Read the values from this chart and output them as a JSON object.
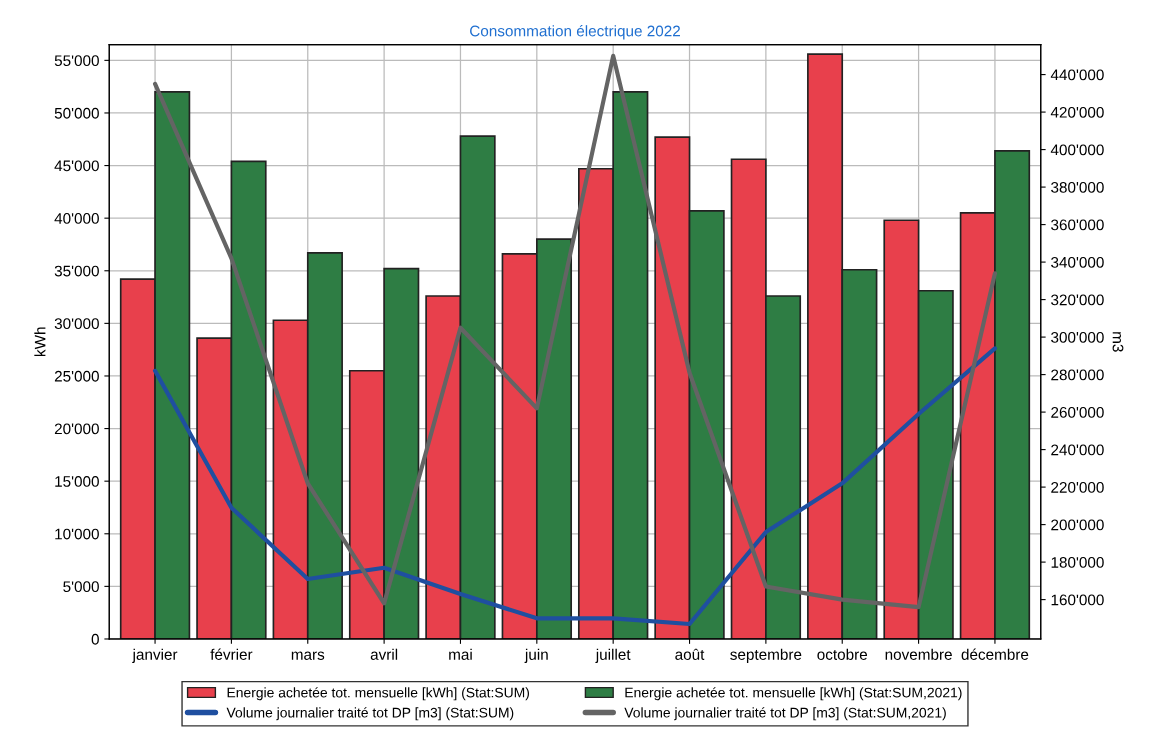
{
  "chart_data": {
    "type": "bar",
    "title": "Consommation électrique 2022",
    "ylabel": "kWh",
    "y2label": "m3",
    "categories": [
      "janvier",
      "février",
      "mars",
      "avril",
      "mai",
      "juin",
      "juillet",
      "août",
      "septembre",
      "octobre",
      "novembre",
      "décembre"
    ],
    "series": [
      {
        "name": "Energie achetée tot. mensuelle [kWh] (Stat:SUM)",
        "color": "#e8404c",
        "values": [
          34200,
          28600,
          30300,
          25500,
          32600,
          36600,
          44700,
          47700,
          45600,
          55600,
          39800,
          40500
        ]
      },
      {
        "name": "Energie achetée tot. mensuelle [kWh] (Stat:SUM,2021)",
        "color": "#2e7d44",
        "values": [
          52000,
          45400,
          36700,
          35200,
          47800,
          38000,
          52000,
          40700,
          32600,
          35100,
          33100,
          46400
        ]
      },
      {
        "name": "Volume journalier traité tot DP [m3] (Stat:SUM)",
        "type": "line",
        "axis": "y2",
        "color": "#1f4fa0",
        "values": [
          282000,
          209000,
          171000,
          177000,
          163000,
          150000,
          150000,
          147000,
          196000,
          222000,
          259000,
          294000
        ]
      },
      {
        "name": "Volume journalier traité tot DP [m3] (Stat:SUM,2021)",
        "type": "line",
        "axis": "y2",
        "color": "#646464",
        "values": [
          435000,
          342000,
          222000,
          158000,
          305000,
          262000,
          450000,
          281000,
          167000,
          160000,
          156000,
          334000
        ]
      }
    ],
    "ylim": [
      0,
      56500
    ],
    "yticks": [
      0,
      {
        "value": 5000,
        "label": "5'000"
      },
      {
        "value": 10000,
        "label": "10'000"
      },
      {
        "value": 15000,
        "label": "15'000"
      },
      {
        "value": 20000,
        "label": "20'000"
      },
      {
        "value": 25000,
        "label": "25'000"
      },
      {
        "value": 30000,
        "label": "30'000"
      },
      {
        "value": 35000,
        "label": "35'000"
      },
      {
        "value": 40000,
        "label": "40'000"
      },
      {
        "value": 45000,
        "label": "45'000"
      },
      {
        "value": 50000,
        "label": "50'000"
      },
      {
        "value": 55000,
        "label": "55'000"
      }
    ],
    "y2lim": [
      139000,
      456000
    ],
    "y2ticks": [
      {
        "value": 160000,
        "label": "160'000"
      },
      {
        "value": 180000,
        "label": "180'000"
      },
      {
        "value": 200000,
        "label": "200'000"
      },
      {
        "value": 220000,
        "label": "220'000"
      },
      {
        "value": 240000,
        "label": "240'000"
      },
      {
        "value": 260000,
        "label": "260'000"
      },
      {
        "value": 280000,
        "label": "280'000"
      },
      {
        "value": 300000,
        "label": "300'000"
      },
      {
        "value": 320000,
        "label": "320'000"
      },
      {
        "value": 340000,
        "label": "340'000"
      },
      {
        "value": 360000,
        "label": "360'000"
      },
      {
        "value": 380000,
        "label": "380'000"
      },
      {
        "value": 400000,
        "label": "400'000"
      },
      {
        "value": 420000,
        "label": "420'000"
      },
      {
        "value": 440000,
        "label": "440'000"
      }
    ],
    "grid": true,
    "legend": "bottom",
    "marker": "none",
    "line_style": "solid"
  }
}
